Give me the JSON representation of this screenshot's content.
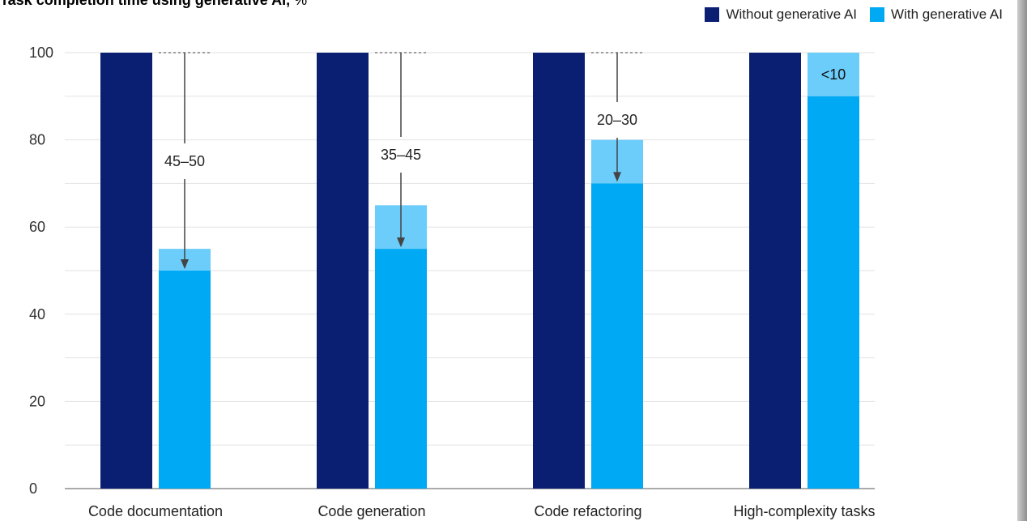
{
  "chart_data": {
    "type": "bar",
    "title": "Task completion time using generative AI,",
    "title_unit": "%",
    "categories": [
      "Code documentation",
      "Code generation",
      "Code refactoring",
      "High-complexity tasks"
    ],
    "series": [
      {
        "name": "Without generative AI",
        "color": "#0b1f72",
        "values": [
          100,
          100,
          100,
          100
        ]
      },
      {
        "name": "With generative AI",
        "color": "#00a9f4",
        "values": [
          50,
          55,
          70,
          90
        ],
        "range_top": [
          55,
          65,
          80,
          100
        ],
        "range_color": "#6ccdfa"
      }
    ],
    "annotations": [
      "45–50",
      "35–45",
      "20–30",
      "<10"
    ],
    "y_ticks": [
      0,
      20,
      40,
      60,
      80,
      100
    ],
    "ylim": [
      0,
      100
    ],
    "grid": true,
    "legend_position": "top-right"
  }
}
